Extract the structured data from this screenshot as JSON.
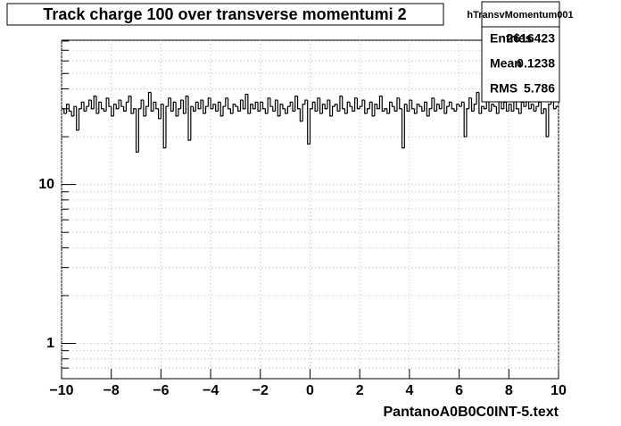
{
  "chart_data": {
    "type": "histogram",
    "title": "Track charge 100 over transverse momentumi 2",
    "x_label": "PantanoA0B0C0INT-5.text",
    "stats": {
      "name": "hTransvMomentum001",
      "labels": [
        "Entries",
        "Mean",
        "RMS"
      ],
      "values": [
        2616423,
        0.1238,
        5.786
      ]
    },
    "color": "#000000",
    "log_y": true,
    "grid": true,
    "xlim": [
      -10,
      10
    ],
    "ylim": [
      0.6,
      81
    ],
    "xticks": [
      {
        "value": -10,
        "label": "−10"
      },
      {
        "value": -8,
        "label": "−8"
      },
      {
        "value": -6,
        "label": "−6"
      },
      {
        "value": -4,
        "label": "−4"
      },
      {
        "value": -2,
        "label": "−2"
      },
      0,
      2,
      4,
      6,
      8,
      10
    ],
    "yticks": [
      1,
      10
    ],
    "yminorticks": [
      0.7,
      0.8,
      0.9,
      2,
      3,
      4,
      5,
      6,
      7,
      8,
      9,
      20,
      30,
      40,
      50,
      60,
      70,
      80
    ],
    "bins": [
      -10,
      -9.9,
      -9.8,
      -9.7,
      -9.6,
      -9.5,
      -9.4,
      -9.3,
      -9.2,
      -9.1,
      -9,
      -8.9,
      -8.8,
      -8.7,
      -8.6,
      -8.5,
      -8.4,
      -8.3,
      -8.2,
      -8.1,
      -8,
      -7.9,
      -7.8,
      -7.7,
      -7.6,
      -7.5,
      -7.4,
      -7.3,
      -7.2,
      -7.1,
      -7,
      -6.9,
      -6.8,
      -6.7,
      -6.6,
      -6.5,
      -6.4,
      -6.3,
      -6.2,
      -6.1,
      -6,
      -5.9,
      -5.8,
      -5.7,
      -5.6,
      -5.5,
      -5.4,
      -5.3,
      -5.2,
      -5.1,
      -5,
      -4.9,
      -4.8,
      -4.7,
      -4.6,
      -4.5,
      -4.4,
      -4.3,
      -4.2,
      -4.1,
      -4,
      -3.9,
      -3.8,
      -3.7,
      -3.6,
      -3.5,
      -3.4,
      -3.3,
      -3.2,
      -3.1,
      -3,
      -2.9,
      -2.8,
      -2.7,
      -2.6,
      -2.5,
      -2.4,
      -2.3,
      -2.2,
      -2.1,
      -2,
      -1.9,
      -1.8,
      -1.7,
      -1.6,
      -1.5,
      -1.4,
      -1.3,
      -1.2,
      -1.1,
      -1,
      -0.9,
      -0.8,
      -0.7,
      -0.6,
      -0.5,
      -0.4,
      -0.3,
      -0.2,
      -0.1,
      0,
      0.1,
      0.2,
      0.3,
      0.4,
      0.5,
      0.6,
      0.7,
      0.8,
      0.9,
      1,
      1.1,
      1.2,
      1.3,
      1.4,
      1.5,
      1.6,
      1.7,
      1.8,
      1.9,
      2,
      2.1,
      2.2,
      2.3,
      2.4,
      2.5,
      2.6,
      2.7,
      2.8,
      2.9,
      3,
      3.1,
      3.2,
      3.3,
      3.4,
      3.5,
      3.6,
      3.7,
      3.8,
      3.9,
      4,
      4.1,
      4.2,
      4.3,
      4.4,
      4.5,
      4.6,
      4.7,
      4.8,
      4.9,
      5,
      5.1,
      5.2,
      5.3,
      5.4,
      5.5,
      5.6,
      5.7,
      5.8,
      5.9,
      6,
      6.1,
      6.2,
      6.3,
      6.4,
      6.5,
      6.6,
      6.7,
      6.8,
      6.9,
      7,
      7.1,
      7.2,
      7.3,
      7.4,
      7.5,
      7.6,
      7.7,
      7.8,
      7.9,
      8,
      8.1,
      8.2,
      8.3,
      8.4,
      8.5,
      8.6,
      8.7,
      8.8,
      8.9,
      9,
      9.1,
      9.2,
      9.3,
      9.4,
      9.5,
      9.6,
      9.7,
      9.8,
      9.9,
      10
    ],
    "values": [
      30,
      28,
      32,
      29,
      27,
      31,
      22,
      30,
      33,
      29,
      31,
      34,
      30,
      36,
      28,
      33,
      30,
      29,
      35,
      31,
      27,
      32,
      30,
      34,
      31,
      29,
      33,
      36,
      28,
      30,
      16,
      30,
      34,
      27,
      31,
      38,
      29,
      33,
      30,
      26,
      32,
      17,
      31,
      35,
      29,
      33,
      27,
      30,
      34,
      28,
      36,
      19,
      31,
      29,
      33,
      30,
      34,
      28,
      31,
      35,
      30,
      32,
      29,
      33,
      27,
      31,
      35,
      30,
      28,
      32,
      31,
      29,
      34,
      30,
      37,
      28,
      32,
      30,
      33,
      29,
      33,
      30,
      28,
      35,
      31,
      29,
      34,
      27,
      32,
      30,
      28,
      31,
      33,
      29,
      36,
      30,
      25,
      32,
      34,
      18,
      30,
      33,
      29,
      35,
      28,
      32,
      30,
      34,
      27,
      31,
      32,
      29,
      36,
      30,
      28,
      33,
      31,
      29,
      35,
      30,
      31,
      34,
      28,
      30,
      33,
      27,
      32,
      30,
      36,
      29,
      30,
      28,
      33,
      31,
      29,
      35,
      30,
      17,
      32,
      29,
      34,
      30,
      28,
      32,
      31,
      29,
      33,
      27,
      30,
      35,
      29,
      32,
      30,
      34,
      28,
      31,
      33,
      30,
      29,
      32,
      31,
      33,
      20,
      30,
      35,
      29,
      32,
      38,
      28,
      31,
      30,
      34,
      29,
      32,
      31,
      28,
      35,
      30,
      33,
      29,
      32,
      29,
      34,
      30,
      28,
      33,
      31,
      36,
      30,
      32,
      29,
      31,
      33,
      28,
      30,
      20,
      32,
      34,
      30,
      31
    ]
  }
}
